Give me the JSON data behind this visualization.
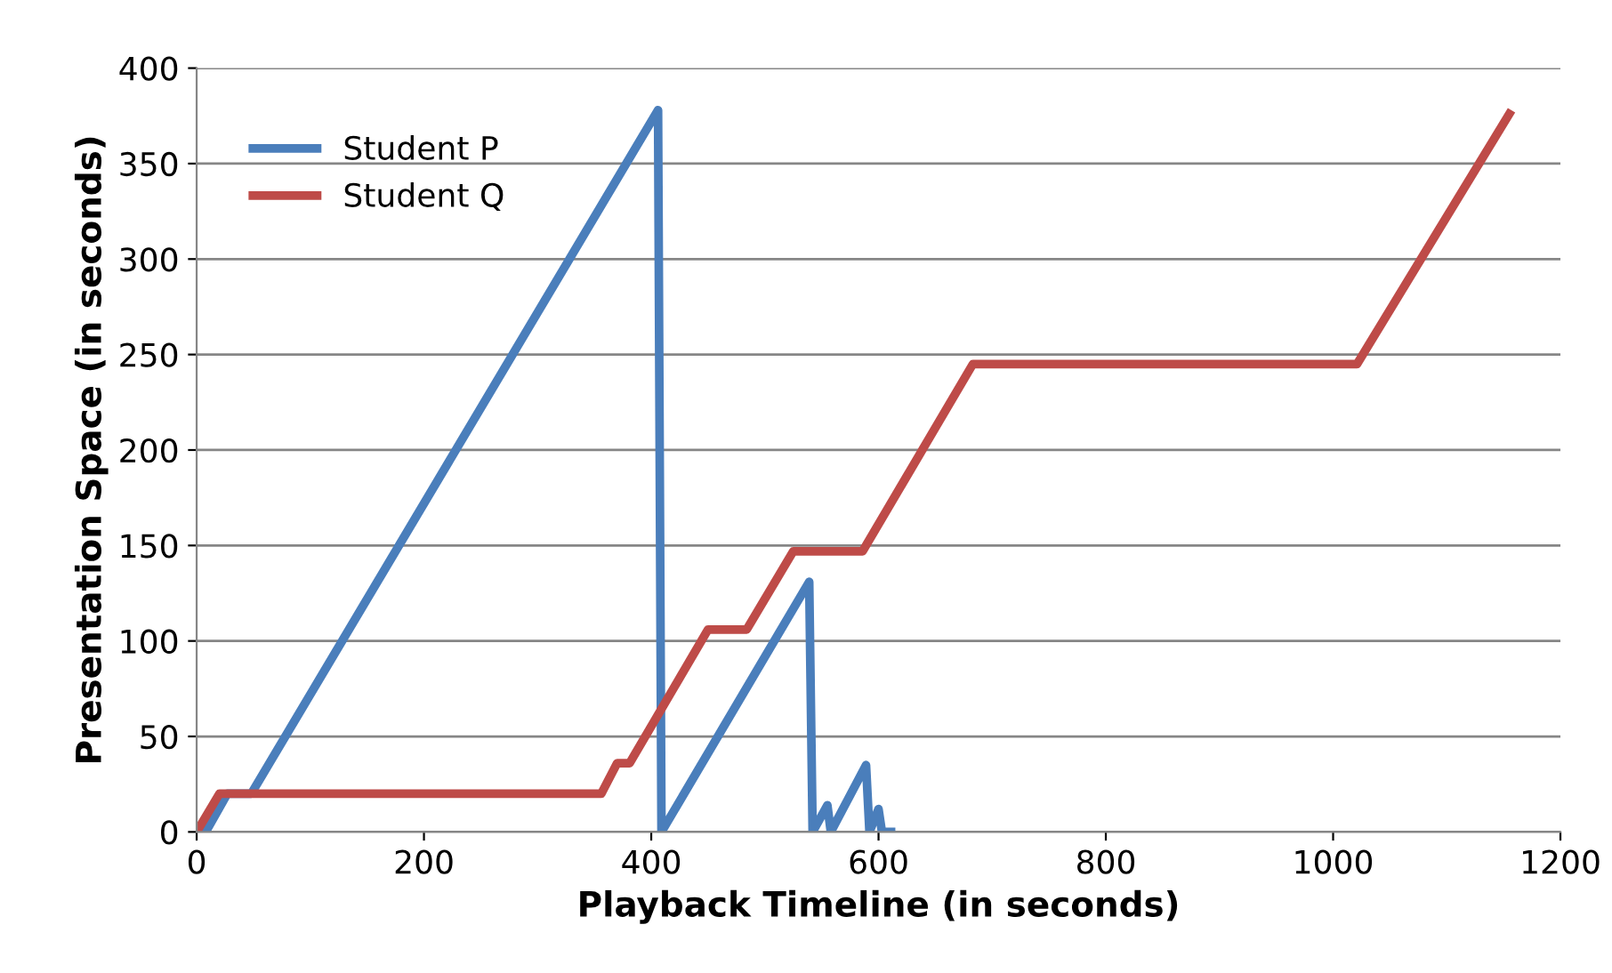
{
  "chart_data": {
    "type": "line",
    "xlabel": "Playback Timeline (in seconds)",
    "ylabel": "Presentation Space (in seconds)",
    "xlim": [
      0,
      1200
    ],
    "xticks": [
      0,
      200,
      400,
      600,
      800,
      1000,
      1200
    ],
    "ylim": [
      0,
      400
    ],
    "yticks": [
      0,
      50,
      100,
      150,
      200,
      250,
      300,
      350,
      400
    ],
    "grid": "y",
    "legend": "top left",
    "marker": "none",
    "line_style": "solid",
    "series": [
      {
        "name": "Student P",
        "color": "#4a7ebb",
        "x": [
          8,
          27,
          48,
          406,
          409,
          539,
          542,
          555,
          558,
          589,
          592,
          600,
          603,
          611
        ],
        "values": [
          0,
          20,
          20,
          378,
          0,
          131,
          0,
          14,
          0,
          35,
          0,
          12,
          0,
          0
        ]
      },
      {
        "name": "Student Q",
        "color": "#be4b48",
        "x": [
          0,
          20,
          356,
          370,
          381,
          450,
          484,
          525,
          586,
          683,
          1021,
          1155
        ],
        "values": [
          0,
          20,
          20,
          36,
          36,
          106,
          106,
          147,
          147,
          245,
          245,
          376
        ]
      }
    ]
  }
}
